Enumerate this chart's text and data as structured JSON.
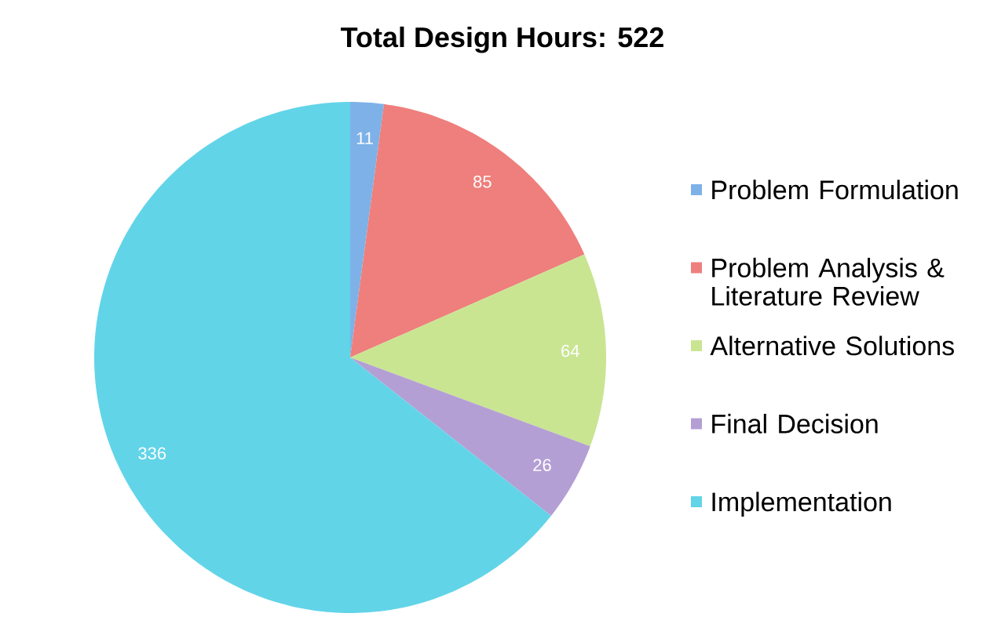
{
  "chart_data": {
    "type": "pie",
    "title": "Total Design Hours: 522",
    "categories": [
      "Problem Formulation",
      "Problem Analysis & Literature Review",
      "Alternative Solutions",
      "Final Decision",
      "Implementation"
    ],
    "values": [
      11,
      85,
      64,
      26,
      336
    ],
    "colors": [
      "#7eb1e8",
      "#ee7f7c",
      "#c9e592",
      "#b49fd4",
      "#62d4e8"
    ],
    "data_labels": true,
    "legend": "right"
  }
}
